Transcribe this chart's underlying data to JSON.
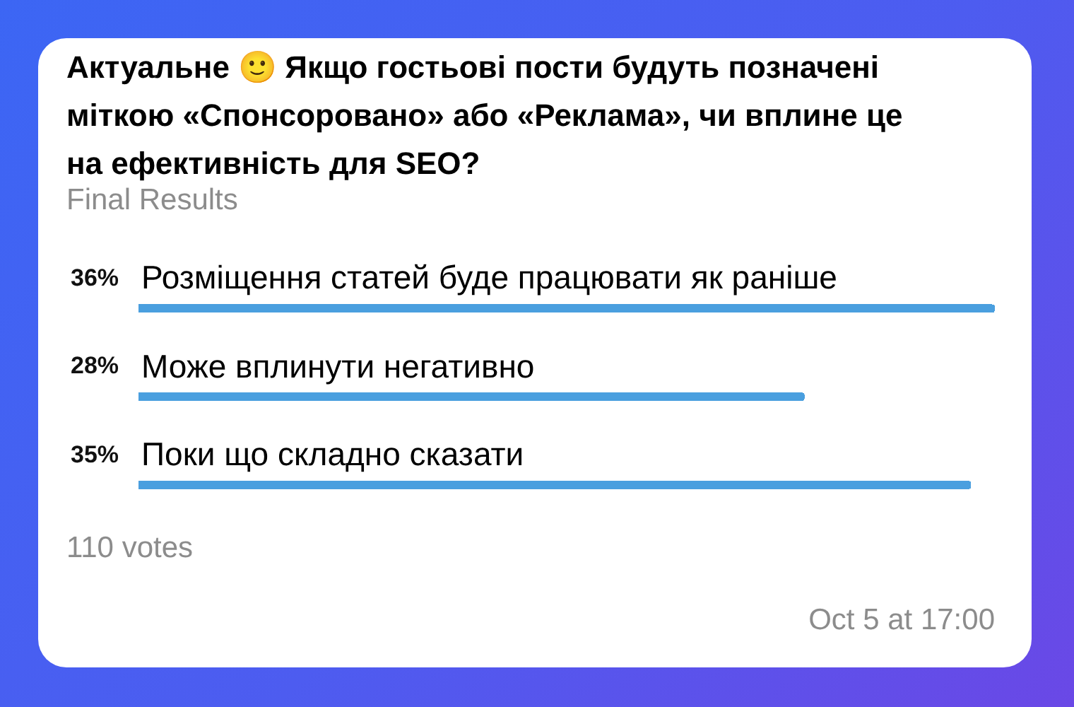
{
  "chart_data": {
    "type": "bar",
    "orientation": "horizontal",
    "title": "Актуальне 🙂 Якщо гостьові пости будуть позначені міткою «Спонсоровано» або «Реклама», чи вплине це на ефективність для SEO?",
    "subtitle": "Final Results",
    "categories": [
      "Розміщення статей буде працювати як раніше",
      "Може вплинути негативно",
      "Поки що складно сказати"
    ],
    "values": [
      36,
      28,
      35
    ],
    "value_labels": [
      "36%",
      "28%",
      "35%"
    ],
    "color": "#4a9fdf",
    "xlim": [
      0,
      36
    ],
    "grid": false,
    "legend": false,
    "tick_labels": "y",
    "annotations": [
      "110 votes",
      "Oct 5 at 17:00"
    ]
  }
}
